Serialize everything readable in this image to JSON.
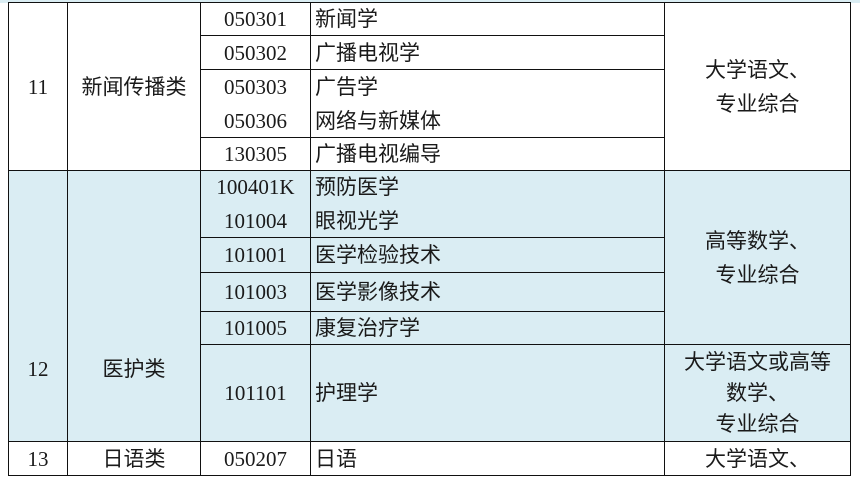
{
  "colors": {
    "highlight_row": "#daedf3",
    "border": "#111111"
  },
  "rows": [
    {
      "no": "11",
      "category": "新闻传播类",
      "majors": [
        {
          "codes": [
            "050301"
          ],
          "names": [
            "新闻学"
          ]
        },
        {
          "codes": [
            "050302"
          ],
          "names": [
            "广播电视学"
          ]
        },
        {
          "codes": [
            "050303",
            "050306"
          ],
          "names": [
            "广告学",
            "网络与新媒体"
          ]
        },
        {
          "codes": [
            "130305"
          ],
          "names": [
            "广播电视编导"
          ]
        }
      ],
      "subjects": [
        {
          "lines": [
            "大学语文、",
            "专业综合"
          ]
        }
      ]
    },
    {
      "no": "12",
      "category": "医护类",
      "majors": [
        {
          "codes": [
            "100401K",
            "101004"
          ],
          "names": [
            "预防医学",
            "眼视光学"
          ]
        },
        {
          "codes": [
            "101001"
          ],
          "names": [
            "医学检验技术"
          ]
        },
        {
          "codes": [
            "101003"
          ],
          "names": [
            "医学影像技术"
          ]
        },
        {
          "codes": [
            "101005"
          ],
          "names": [
            "康复治疗学"
          ]
        },
        {
          "codes": [
            "101101"
          ],
          "names": [
            "护理学"
          ]
        }
      ],
      "subjects": [
        {
          "lines": [
            "高等数学、",
            "专业综合"
          ]
        },
        {
          "lines": [
            "大学语文或高等",
            "数学、",
            "专业综合"
          ]
        }
      ]
    },
    {
      "no": "13",
      "category": "日语类",
      "majors": [
        {
          "codes": [
            "050207"
          ],
          "names": [
            "日语"
          ]
        }
      ],
      "subjects": [
        {
          "lines": [
            "大学语文、"
          ]
        }
      ]
    }
  ]
}
